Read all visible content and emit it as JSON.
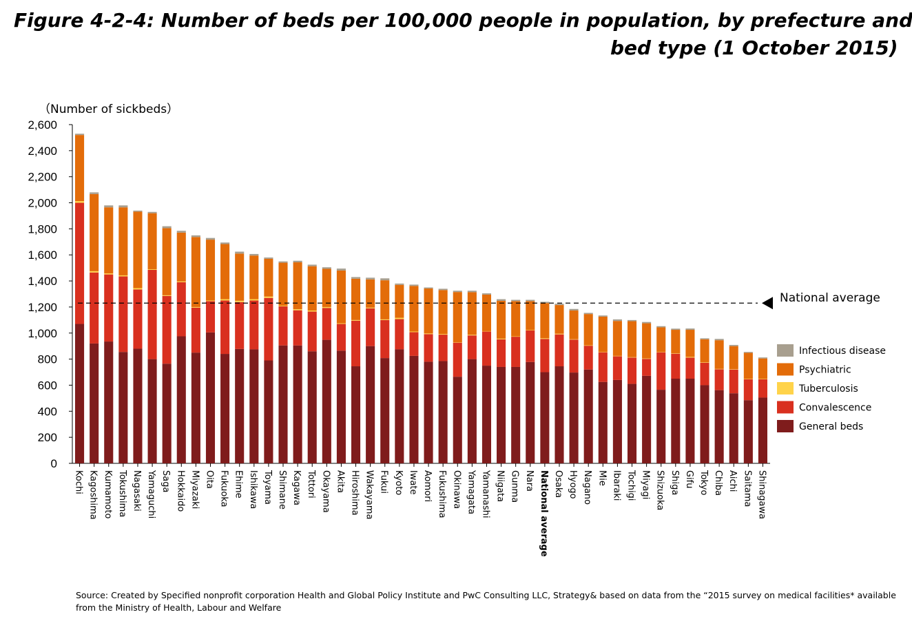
{
  "title_line1": "Figure 4-2-4: Number of beds per 100,000 people in population, by prefecture and",
  "title_line2": "bed type (1 October 2015)",
  "source": "Source: Created by Specified nonprofit corporation Health and Global Policy Institute and PwC Consulting LLC, Strategy& based on data from the “2015 survey on medical facilities* available from the Ministry of Health, Labour and Welfare",
  "colors": {
    "General beds": "#7f1c1c",
    "Convalescence": "#d9301f",
    "Tuberculosis": "#ffd34a",
    "Psychiatric": "#e36c09",
    "Infectious disease": "#a89f8f"
  },
  "chart_data": {
    "type": "bar",
    "stacked": true,
    "ylabel": "（Number of sickbeds）",
    "ylim": [
      0,
      2600
    ],
    "yticks": [
      0,
      200,
      400,
      600,
      800,
      1000,
      1200,
      1400,
      1600,
      1800,
      2000,
      2200,
      2400,
      2600
    ],
    "legend_position": "right",
    "categories": [
      "Kochi",
      "Kagoshima",
      "Kumamoto",
      "Tokushima",
      "Nagasaki",
      "Yamaguchi",
      "Saga",
      "Hokkaido",
      "Miyazaki",
      "Oita",
      "Fukuoka",
      "Ehime",
      "Ishikawa",
      "Toyama",
      "Shimane",
      "Kagawa",
      "Tottori",
      "Okayama",
      "Akita",
      "Hiroshima",
      "Wakayama",
      "Fukui",
      "Kyoto",
      "Iwate",
      "Aomori",
      "Fukushima",
      "Okinawa",
      "Yamagata",
      "Yamanashi",
      "Niigata",
      "Gunma",
      "Nara",
      "National average",
      "Osaka",
      "Hyogo",
      "Nagano",
      "Mie",
      "Ibaraki",
      "Tochigi",
      "Miyagi",
      "Shizuoka",
      "Shiga",
      "Gifu",
      "Tokyo",
      "Chiba",
      "Aichi",
      "Saitama",
      "Shinagawa"
    ],
    "highlight_category": "National average",
    "series": [
      {
        "name": "General beds",
        "values": [
          1070,
          920,
          935,
          855,
          880,
          800,
          765,
          975,
          850,
          1005,
          840,
          878,
          875,
          790,
          905,
          905,
          860,
          948,
          865,
          745,
          900,
          808,
          875,
          825,
          780,
          785,
          665,
          800,
          750,
          740,
          740,
          778,
          700,
          745,
          697,
          720,
          625,
          640,
          610,
          672,
          565,
          650,
          650,
          600,
          562,
          538,
          485,
          505
        ]
      },
      {
        "name": "Convalescence",
        "values": [
          930,
          545,
          515,
          580,
          455,
          685,
          520,
          415,
          345,
          240,
          410,
          360,
          375,
          480,
          300,
          270,
          305,
          245,
          205,
          350,
          290,
          292,
          232,
          182,
          212,
          203,
          262,
          182,
          262,
          212,
          232,
          242,
          255,
          245,
          253,
          183,
          228,
          182,
          202,
          130,
          288,
          192,
          162,
          172,
          160,
          182,
          160,
          140
        ]
      },
      {
        "name": "Tuberculosis",
        "values": [
          13,
          10,
          8,
          8,
          10,
          5,
          5,
          6,
          5,
          5,
          10,
          10,
          10,
          10,
          5,
          8,
          8,
          7,
          5,
          5,
          5,
          5,
          10,
          5,
          5,
          5,
          3,
          5,
          3,
          5,
          3,
          3,
          5,
          5,
          3,
          3,
          3,
          3,
          3,
          3,
          3,
          3,
          5,
          3,
          3,
          3,
          3,
          3
        ]
      },
      {
        "name": "Psychiatric",
        "values": [
          507,
          592,
          507,
          522,
          587,
          430,
          515,
          375,
          537,
          467,
          423,
          362,
          335,
          290,
          330,
          360,
          340,
          293,
          405,
          317,
          217,
          300,
          253,
          350,
          345,
          337,
          385,
          327,
          280,
          290,
          270,
          222,
          270,
          220,
          220,
          240,
          270,
          268,
          276,
          270,
          188,
          180,
          208,
          177,
          220,
          177,
          200,
          157
        ]
      },
      {
        "name": "Infectious disease",
        "values": [
          10,
          13,
          15,
          15,
          8,
          10,
          15,
          14,
          13,
          13,
          12,
          15,
          12,
          10,
          10,
          12,
          12,
          12,
          15,
          13,
          13,
          15,
          10,
          10,
          8,
          10,
          10,
          11,
          10,
          13,
          10,
          10,
          10,
          10,
          12,
          9,
          9,
          12,
          9,
          10,
          9,
          9,
          10,
          8,
          10,
          9,
          7,
          8
        ]
      }
    ],
    "reference_line": {
      "label": "National average",
      "value": 1230
    }
  }
}
